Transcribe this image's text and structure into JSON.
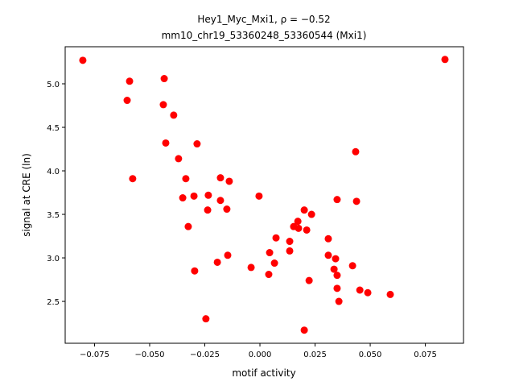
{
  "chart_data": {
    "type": "scatter",
    "title": "Hey1_Myc_Mxi1, ρ = −0.52",
    "subtitle": "mm10_chr19_53360248_53360544 (Mxi1)",
    "x_label": "motif activity",
    "y_label": "signal at CRE (ln)",
    "color": "#ff0000",
    "xlim": [
      -0.0883,
      0.0923
    ],
    "ylim": [
      2.019,
      5.426
    ],
    "xticks": [
      {
        "value": -0.075,
        "label": "−0.075"
      },
      {
        "value": -0.05,
        "label": "−0.050"
      },
      {
        "value": -0.025,
        "label": "−0.025"
      },
      {
        "value": 0,
        "label": "0.000"
      },
      0.025,
      {
        "value": 0.05,
        "label": "0.050"
      },
      0.075
    ],
    "yticks": [
      2.5,
      {
        "value": 3,
        "label": "3.0"
      },
      3.5,
      {
        "value": 4,
        "label": "4.0"
      },
      4.5,
      {
        "value": 5,
        "label": "5.0"
      }
    ],
    "x": [
      -0.0803,
      0.0839,
      -0.0591,
      -0.0434,
      -0.0602,
      -0.0438,
      -0.0391,
      -0.0427,
      -0.0285,
      -0.0369,
      0.0434,
      -0.0577,
      -0.0336,
      -0.0179,
      -0.0139,
      -0.035,
      -0.0299,
      -0.0234,
      -0.0004,
      -0.0179,
      -0.0237,
      -0.015,
      0.035,
      0.0438,
      0.0201,
      0.0234,
      0.0172,
      0.0153,
      0.0175,
      0.0212,
      -0.0325,
      0.0073,
      0.0135,
      0.031,
      0.0135,
      0.0044,
      0.031,
      -0.0146,
      0.0343,
      -0.0193,
      0.0066,
      -0.004,
      0.042,
      0.0336,
      -0.0296,
      0.004,
      0.035,
      0.0223,
      0.035,
      0.0453,
      0.0489,
      0.0591,
      0.0358,
      -0.0245,
      0.0201
    ],
    "values": [
      5.27,
      5.28,
      5.03,
      5.06,
      4.81,
      4.76,
      4.64,
      4.32,
      4.31,
      4.14,
      4.22,
      3.91,
      3.91,
      3.92,
      3.88,
      3.69,
      3.71,
      3.72,
      3.71,
      3.66,
      3.55,
      3.56,
      3.67,
      3.65,
      3.55,
      3.5,
      3.42,
      3.36,
      3.34,
      3.32,
      3.36,
      3.23,
      3.19,
      3.22,
      3.08,
      3.06,
      3.03,
      3.03,
      2.99,
      2.95,
      2.94,
      2.89,
      2.91,
      2.87,
      2.85,
      2.81,
      2.8,
      2.74,
      2.65,
      2.63,
      2.6,
      2.58,
      2.5,
      2.3,
      2.17
    ]
  }
}
